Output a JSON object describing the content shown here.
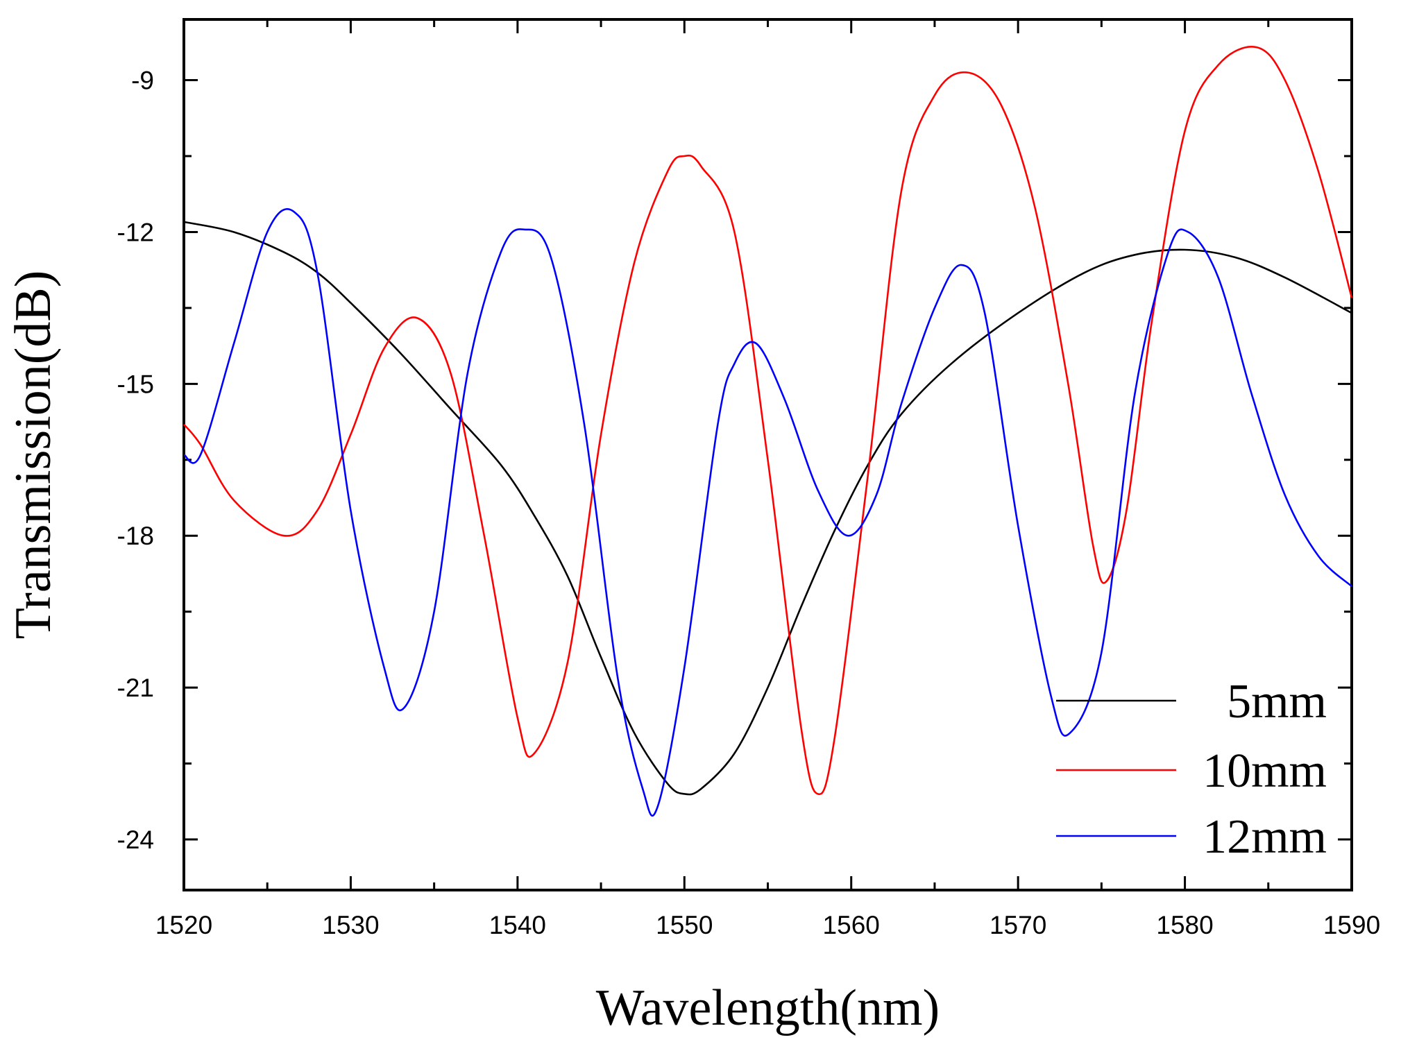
{
  "chart_data": {
    "type": "line",
    "title": "",
    "xlabel": "Wavelength(nm)",
    "ylabel": "Transmission(dB)",
    "xlim": [
      1520,
      1590
    ],
    "ylim": [
      -25,
      -7.8
    ],
    "xticks": [
      1520,
      1530,
      1540,
      1550,
      1560,
      1570,
      1580,
      1590
    ],
    "yticks": [
      -9,
      -12,
      -15,
      -18,
      -21,
      -24
    ],
    "xtick_labels": [
      "1520",
      "1530",
      "1540",
      "1550",
      "1560",
      "1570",
      "1580",
      "1590"
    ],
    "ytick_labels": [
      "-9",
      "-12",
      "-15",
      "-18",
      "-21",
      "-24"
    ],
    "grid": false,
    "legend_position": "bottom-right",
    "series": [
      {
        "name": "5mm",
        "color": "#000000",
        "x": [
          1520,
          1523,
          1526,
          1528,
          1530,
          1533,
          1536,
          1539,
          1541,
          1543,
          1545,
          1547,
          1549,
          1550,
          1551,
          1553,
          1555,
          1557,
          1559,
          1561,
          1563,
          1566,
          1570,
          1574,
          1577,
          1580,
          1583,
          1586,
          1590
        ],
        "values": [
          -11.8,
          -12.0,
          -12.4,
          -12.8,
          -13.4,
          -14.4,
          -15.5,
          -16.6,
          -17.6,
          -18.8,
          -20.4,
          -21.9,
          -22.9,
          -23.1,
          -23.0,
          -22.3,
          -21.0,
          -19.4,
          -17.9,
          -16.6,
          -15.6,
          -14.6,
          -13.6,
          -12.8,
          -12.45,
          -12.35,
          -12.5,
          -12.9,
          -13.6
        ]
      },
      {
        "name": "10mm",
        "color": "#ff0000",
        "x": [
          1520,
          1521,
          1523,
          1526,
          1528,
          1530,
          1532,
          1534,
          1536,
          1538,
          1540,
          1541,
          1543,
          1545,
          1547,
          1549,
          1550,
          1551,
          1553,
          1555,
          1557,
          1558,
          1559,
          1561,
          1563,
          1565,
          1567,
          1569,
          1571,
          1573,
          1574.5,
          1575.3,
          1576.5,
          1578,
          1580,
          1582,
          1584.3,
          1586,
          1588,
          1590
        ],
        "values": [
          -15.8,
          -16.2,
          -17.3,
          -18.0,
          -17.5,
          -16.0,
          -14.3,
          -13.7,
          -14.8,
          -18.0,
          -21.6,
          -22.3,
          -20.5,
          -16.0,
          -12.6,
          -10.8,
          -10.5,
          -10.7,
          -12.0,
          -16.5,
          -21.8,
          -23.1,
          -22.0,
          -16.8,
          -11.2,
          -9.3,
          -8.85,
          -9.5,
          -11.5,
          -15.0,
          -18.2,
          -18.9,
          -17.5,
          -13.8,
          -10.0,
          -8.7,
          -8.35,
          -9.0,
          -10.8,
          -13.3
        ]
      },
      {
        "name": "12mm",
        "color": "#0000ff",
        "x": [
          1520,
          1521,
          1523,
          1525,
          1526.6,
          1528,
          1530,
          1532,
          1533.2,
          1535,
          1537,
          1539,
          1540.4,
          1542,
          1544,
          1546,
          1547.5,
          1548.4,
          1550,
          1552,
          1553,
          1554.3,
          1556,
          1558,
          1559.8,
          1561.5,
          1563,
          1565,
          1566.6,
          1568,
          1570,
          1572,
          1573.1,
          1575,
          1577,
          1579,
          1580.2,
          1582,
          1584,
          1586,
          1588,
          1590
        ],
        "values": [
          -16.4,
          -16.4,
          -14.2,
          -12.0,
          -11.6,
          -12.8,
          -17.5,
          -20.6,
          -21.4,
          -19.5,
          -14.8,
          -12.4,
          -11.95,
          -12.5,
          -15.8,
          -20.8,
          -23.0,
          -23.35,
          -20.6,
          -15.8,
          -14.6,
          -14.2,
          -15.3,
          -17.1,
          -18.0,
          -17.2,
          -15.4,
          -13.5,
          -12.65,
          -13.6,
          -17.8,
          -21.2,
          -21.9,
          -20.3,
          -15.2,
          -12.4,
          -12.0,
          -12.9,
          -15.2,
          -17.2,
          -18.4,
          -19.0
        ]
      }
    ]
  }
}
